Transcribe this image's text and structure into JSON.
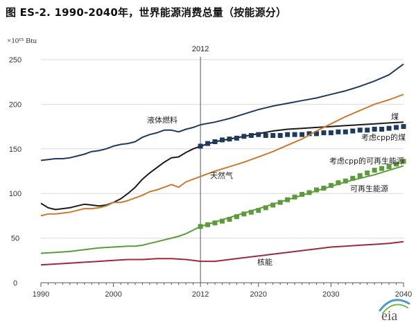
{
  "chart_data": {
    "type": "line",
    "title": "图 ES-2. 1990-2040年，世界能源消费总量（按能源分）",
    "units": "×10¹⁵ Btu",
    "x_ticks": [
      1990,
      2000,
      2012,
      2020,
      2030,
      2040
    ],
    "y_ticks": [
      0,
      50,
      100,
      150,
      200,
      250
    ],
    "xlim": [
      1990,
      2040
    ],
    "ylim": [
      0,
      250
    ],
    "divider": {
      "x": 2012,
      "label": "2012"
    },
    "grid": "horizontal",
    "series": [
      {
        "name": "液体燃料",
        "color": "#1f3a5f",
        "style": "line",
        "points": [
          [
            1990,
            137
          ],
          [
            1991,
            138
          ],
          [
            1992,
            139
          ],
          [
            1993,
            139
          ],
          [
            1994,
            140
          ],
          [
            1995,
            142
          ],
          [
            1996,
            144
          ],
          [
            1997,
            147
          ],
          [
            1998,
            148
          ],
          [
            1999,
            150
          ],
          [
            2000,
            153
          ],
          [
            2001,
            155
          ],
          [
            2002,
            156
          ],
          [
            2003,
            158
          ],
          [
            2004,
            163
          ],
          [
            2005,
            166
          ],
          [
            2006,
            168
          ],
          [
            2007,
            171
          ],
          [
            2008,
            171
          ],
          [
            2009,
            169
          ],
          [
            2010,
            172
          ],
          [
            2011,
            174
          ],
          [
            2012,
            177
          ],
          [
            2014,
            180
          ],
          [
            2016,
            184
          ],
          [
            2018,
            189
          ],
          [
            2020,
            194
          ],
          [
            2022,
            198
          ],
          [
            2024,
            201
          ],
          [
            2026,
            204
          ],
          [
            2028,
            207
          ],
          [
            2030,
            211
          ],
          [
            2032,
            215
          ],
          [
            2034,
            220
          ],
          [
            2036,
            226
          ],
          [
            2038,
            233
          ],
          [
            2040,
            245
          ]
        ]
      },
      {
        "name": "煤",
        "color": "#1a1a1a",
        "style": "line",
        "points": [
          [
            1990,
            89
          ],
          [
            1991,
            84
          ],
          [
            1992,
            82
          ],
          [
            1993,
            83
          ],
          [
            1994,
            84
          ],
          [
            1995,
            86
          ],
          [
            1996,
            88
          ],
          [
            1997,
            87
          ],
          [
            1998,
            86
          ],
          [
            1999,
            87
          ],
          [
            2000,
            90
          ],
          [
            2001,
            94
          ],
          [
            2002,
            100
          ],
          [
            2003,
            107
          ],
          [
            2004,
            116
          ],
          [
            2005,
            123
          ],
          [
            2006,
            129
          ],
          [
            2007,
            135
          ],
          [
            2008,
            140
          ],
          [
            2009,
            141
          ],
          [
            2010,
            146
          ],
          [
            2011,
            150
          ],
          [
            2012,
            153
          ],
          [
            2014,
            158
          ],
          [
            2016,
            161
          ],
          [
            2018,
            164
          ],
          [
            2020,
            167
          ],
          [
            2022,
            170
          ],
          [
            2024,
            172
          ],
          [
            2026,
            173
          ],
          [
            2028,
            174
          ],
          [
            2030,
            175
          ],
          [
            2032,
            176
          ],
          [
            2034,
            177
          ],
          [
            2036,
            178
          ],
          [
            2038,
            179
          ],
          [
            2040,
            180
          ]
        ]
      },
      {
        "name": "考虑cpp的煤",
        "color": "#1f3a5f",
        "style": "marker",
        "points": [
          [
            2012,
            153
          ],
          [
            2013,
            156
          ],
          [
            2014,
            158
          ],
          [
            2015,
            160
          ],
          [
            2016,
            161
          ],
          [
            2017,
            162
          ],
          [
            2018,
            164
          ],
          [
            2019,
            165
          ],
          [
            2020,
            166
          ],
          [
            2021,
            165
          ],
          [
            2022,
            165
          ],
          [
            2023,
            165
          ],
          [
            2024,
            166
          ],
          [
            2025,
            166
          ],
          [
            2026,
            166
          ],
          [
            2027,
            167
          ],
          [
            2028,
            167
          ],
          [
            2029,
            168
          ],
          [
            2030,
            168
          ],
          [
            2031,
            169
          ],
          [
            2032,
            169
          ],
          [
            2033,
            170
          ],
          [
            2034,
            171
          ],
          [
            2035,
            171
          ],
          [
            2036,
            172
          ],
          [
            2037,
            172
          ],
          [
            2038,
            173
          ],
          [
            2039,
            174
          ],
          [
            2040,
            175
          ]
        ]
      },
      {
        "name": "天然气",
        "color": "#c97a2c",
        "style": "line",
        "points": [
          [
            1990,
            75
          ],
          [
            1991,
            77
          ],
          [
            1992,
            77
          ],
          [
            1993,
            78
          ],
          [
            1994,
            79
          ],
          [
            1995,
            81
          ],
          [
            1996,
            83
          ],
          [
            1997,
            83
          ],
          [
            1998,
            84
          ],
          [
            1999,
            86
          ],
          [
            2000,
            90
          ],
          [
            2001,
            90
          ],
          [
            2002,
            92
          ],
          [
            2003,
            95
          ],
          [
            2004,
            98
          ],
          [
            2005,
            102
          ],
          [
            2006,
            104
          ],
          [
            2007,
            107
          ],
          [
            2008,
            110
          ],
          [
            2009,
            107
          ],
          [
            2010,
            113
          ],
          [
            2011,
            116
          ],
          [
            2012,
            119
          ],
          [
            2014,
            125
          ],
          [
            2016,
            130
          ],
          [
            2018,
            135
          ],
          [
            2020,
            141
          ],
          [
            2022,
            147
          ],
          [
            2024,
            154
          ],
          [
            2026,
            161
          ],
          [
            2028,
            170
          ],
          [
            2030,
            178
          ],
          [
            2032,
            186
          ],
          [
            2034,
            193
          ],
          [
            2036,
            200
          ],
          [
            2038,
            205
          ],
          [
            2040,
            211
          ]
        ]
      },
      {
        "name": "考虑cpp的可再生能源",
        "color": "#5b9b3a",
        "style": "marker",
        "points": [
          [
            2012,
            63
          ],
          [
            2013,
            65
          ],
          [
            2014,
            67
          ],
          [
            2015,
            69
          ],
          [
            2016,
            71
          ],
          [
            2017,
            74
          ],
          [
            2018,
            77
          ],
          [
            2019,
            79
          ],
          [
            2020,
            81
          ],
          [
            2021,
            84
          ],
          [
            2022,
            87
          ],
          [
            2023,
            90
          ],
          [
            2024,
            93
          ],
          [
            2025,
            96
          ],
          [
            2026,
            99
          ],
          [
            2027,
            101
          ],
          [
            2028,
            104
          ],
          [
            2029,
            106
          ],
          [
            2030,
            109
          ],
          [
            2031,
            112
          ],
          [
            2032,
            114
          ],
          [
            2033,
            117
          ],
          [
            2034,
            120
          ],
          [
            2035,
            123
          ],
          [
            2036,
            126
          ],
          [
            2037,
            128
          ],
          [
            2038,
            130
          ],
          [
            2039,
            133
          ],
          [
            2040,
            136
          ]
        ]
      },
      {
        "name": "可再生能源",
        "color": "#5b9b3a",
        "style": "line",
        "points": [
          [
            1990,
            33
          ],
          [
            1992,
            34
          ],
          [
            1994,
            35
          ],
          [
            1996,
            37
          ],
          [
            1998,
            39
          ],
          [
            2000,
            40
          ],
          [
            2002,
            41
          ],
          [
            2003,
            41
          ],
          [
            2004,
            42
          ],
          [
            2005,
            44
          ],
          [
            2006,
            46
          ],
          [
            2007,
            48
          ],
          [
            2008,
            50
          ],
          [
            2009,
            52
          ],
          [
            2010,
            55
          ],
          [
            2011,
            59
          ],
          [
            2012,
            63
          ],
          [
            2014,
            68
          ],
          [
            2016,
            73
          ],
          [
            2018,
            78
          ],
          [
            2020,
            83
          ],
          [
            2022,
            88
          ],
          [
            2024,
            93
          ],
          [
            2026,
            98
          ],
          [
            2028,
            103
          ],
          [
            2030,
            108
          ],
          [
            2032,
            113
          ],
          [
            2034,
            117
          ],
          [
            2036,
            121
          ],
          [
            2038,
            126
          ],
          [
            2040,
            131
          ]
        ]
      },
      {
        "name": "核能",
        "color": "#a0283d",
        "style": "line",
        "points": [
          [
            1990,
            20
          ],
          [
            1992,
            21
          ],
          [
            1994,
            22
          ],
          [
            1996,
            23
          ],
          [
            1998,
            24
          ],
          [
            2000,
            25
          ],
          [
            2002,
            26
          ],
          [
            2004,
            26
          ],
          [
            2006,
            27
          ],
          [
            2008,
            27
          ],
          [
            2010,
            26
          ],
          [
            2011,
            25
          ],
          [
            2012,
            24
          ],
          [
            2014,
            24
          ],
          [
            2016,
            26
          ],
          [
            2018,
            28
          ],
          [
            2020,
            30
          ],
          [
            2022,
            32
          ],
          [
            2024,
            34
          ],
          [
            2026,
            36
          ],
          [
            2028,
            38
          ],
          [
            2030,
            40
          ],
          [
            2032,
            41
          ],
          [
            2034,
            42
          ],
          [
            2036,
            43
          ],
          [
            2038,
            44
          ],
          [
            2040,
            46
          ]
        ]
      }
    ]
  },
  "logo": {
    "text": "eia"
  }
}
